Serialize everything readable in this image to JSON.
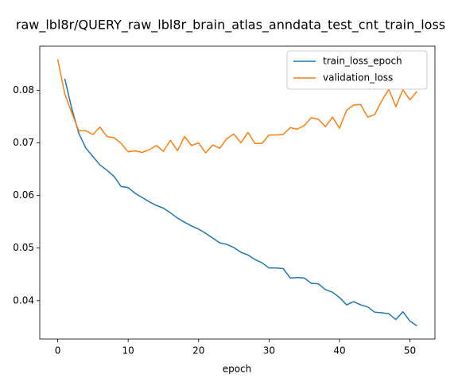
{
  "chart_data": {
    "type": "line",
    "title": "raw_lbl8r/QUERY_raw_lbl8r_brain_atlas_anndata_test_cnt_train_loss",
    "x_label": "epoch",
    "xlim": [
      -2.55,
      53.55
    ],
    "xticks": [
      0,
      10,
      20,
      30,
      40,
      50
    ],
    "ylim": [
      0.0327,
      0.0884
    ],
    "yticks": [
      0.04,
      0.05,
      0.06,
      0.07,
      0.08
    ],
    "legend": "upper right",
    "series": [
      {
        "name": "train_loss_epoch",
        "color": "#1f77b4",
        "x": [
          1,
          2,
          3,
          4,
          5,
          6,
          7,
          8,
          9,
          10,
          11,
          12,
          13,
          14,
          15,
          16,
          17,
          18,
          19,
          20,
          21,
          22,
          23,
          24,
          25,
          26,
          27,
          28,
          29,
          30,
          31,
          32,
          33,
          34,
          35,
          36,
          37,
          38,
          39,
          40,
          41,
          42,
          43,
          44,
          45,
          46,
          47,
          48,
          49,
          50,
          51
        ],
        "values": [
          0.0822,
          0.0765,
          0.0718,
          0.069,
          0.0674,
          0.0658,
          0.0648,
          0.0636,
          0.0617,
          0.0615,
          0.0604,
          0.0596,
          0.0588,
          0.0581,
          0.0576,
          0.0567,
          0.0557,
          0.0549,
          0.0542,
          0.0536,
          0.0528,
          0.0519,
          0.051,
          0.0507,
          0.0501,
          0.0492,
          0.0487,
          0.0478,
          0.0472,
          0.0462,
          0.0462,
          0.0461,
          0.0443,
          0.0444,
          0.0443,
          0.0433,
          0.0432,
          0.0421,
          0.0416,
          0.0406,
          0.0392,
          0.0398,
          0.0392,
          0.0388,
          0.0378,
          0.0377,
          0.0375,
          0.0364,
          0.0379,
          0.0361,
          0.0352
        ]
      },
      {
        "name": "validation_loss",
        "color": "#ff7f0e",
        "x": [
          0,
          1,
          2,
          3,
          4,
          5,
          6,
          7,
          8,
          9,
          10,
          11,
          12,
          13,
          14,
          15,
          16,
          17,
          18,
          19,
          20,
          21,
          22,
          23,
          24,
          25,
          26,
          27,
          28,
          29,
          30,
          31,
          32,
          33,
          34,
          35,
          36,
          37,
          38,
          39,
          40,
          41,
          42,
          43,
          44,
          45,
          46,
          47,
          48,
          49,
          50,
          51
        ],
        "values": [
          0.0859,
          0.0793,
          0.0757,
          0.0723,
          0.0723,
          0.0716,
          0.073,
          0.0712,
          0.071,
          0.0699,
          0.0683,
          0.0685,
          0.0682,
          0.0687,
          0.0695,
          0.0684,
          0.0705,
          0.0685,
          0.0712,
          0.0695,
          0.07,
          0.0681,
          0.0696,
          0.069,
          0.0708,
          0.0717,
          0.07,
          0.072,
          0.0699,
          0.0699,
          0.0715,
          0.0715,
          0.0716,
          0.0729,
          0.0726,
          0.0733,
          0.0748,
          0.0745,
          0.0731,
          0.0749,
          0.0728,
          0.0762,
          0.0772,
          0.0773,
          0.0749,
          0.0754,
          0.078,
          0.0802,
          0.0769,
          0.0801,
          0.0782,
          0.0798
        ]
      }
    ]
  }
}
